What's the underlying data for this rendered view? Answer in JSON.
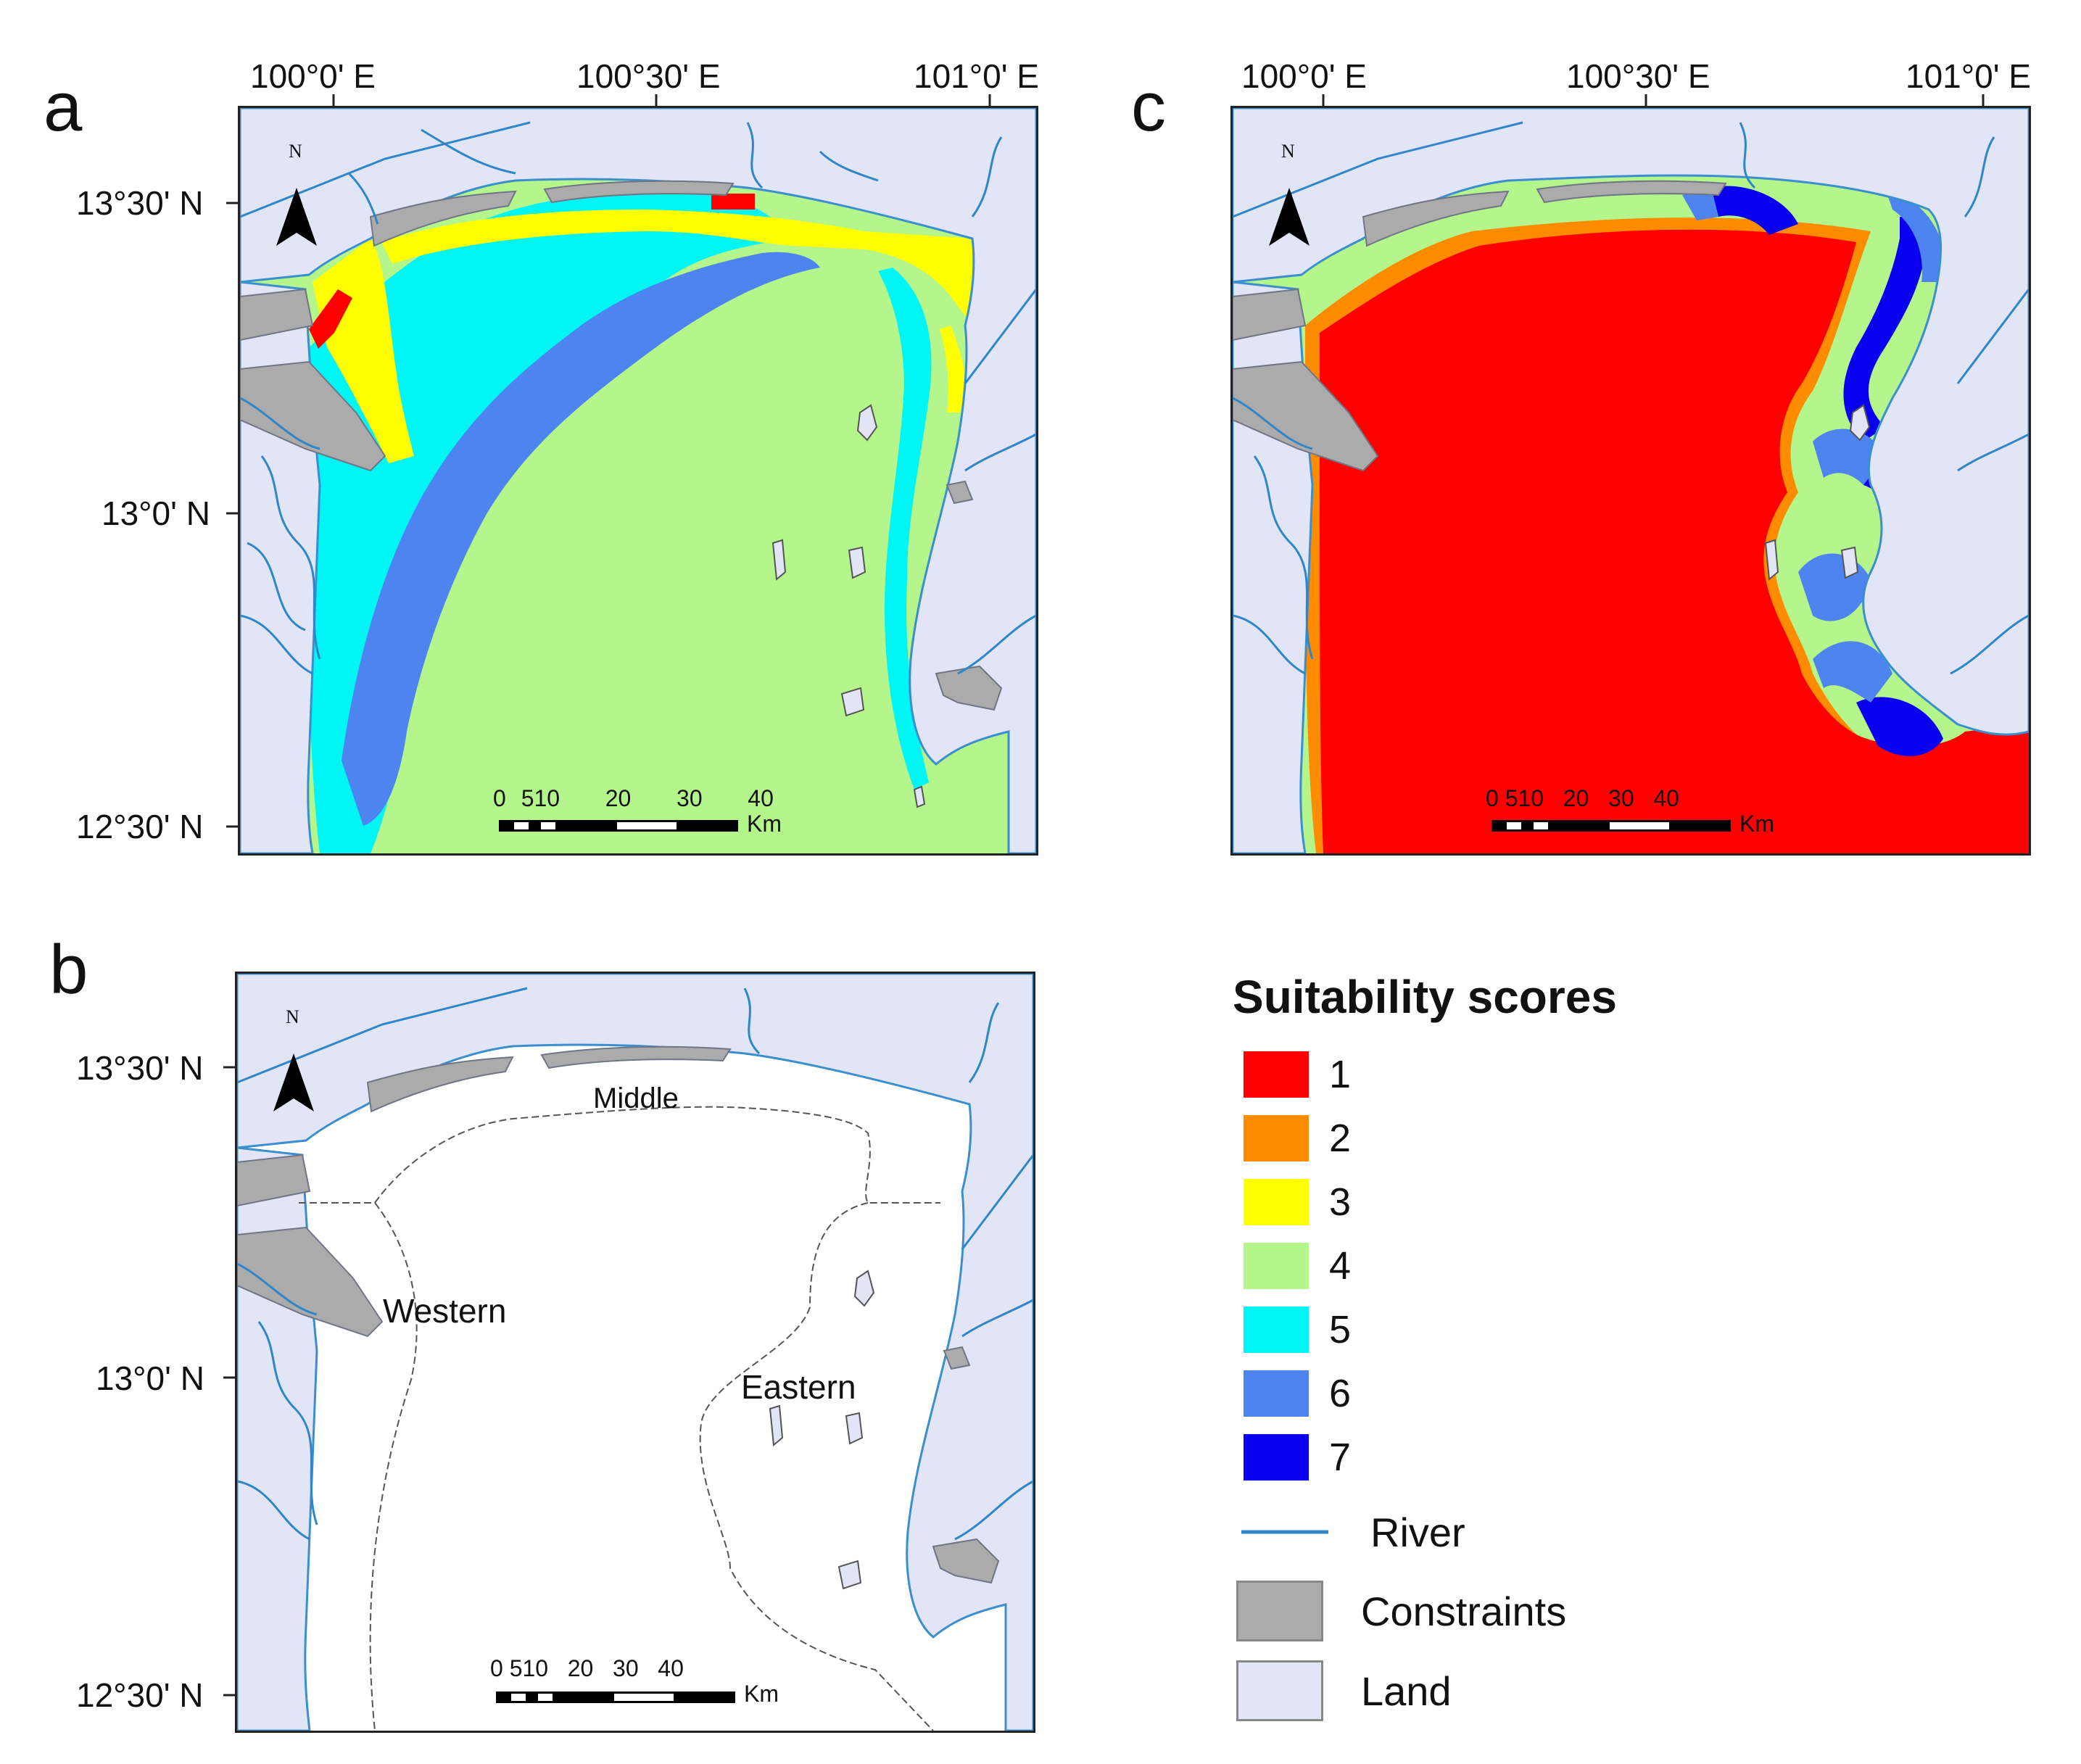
{
  "panels": {
    "a": {
      "letter": "a"
    },
    "b": {
      "letter": "b",
      "regions": {
        "middle": "Middle",
        "western": "Western",
        "eastern": "Eastern"
      }
    },
    "c": {
      "letter": "c"
    }
  },
  "axes": {
    "lon_ticks": [
      "100°0' E",
      "100°30' E",
      "101°0' E"
    ],
    "lat_ticks": [
      "13°30' N",
      "13°0' N",
      "12°30' N"
    ]
  },
  "north_label": "N",
  "scalebar": {
    "labels": [
      "0",
      "5",
      "10",
      "20",
      "30",
      "40"
    ],
    "unit": "Km"
  },
  "legend": {
    "title": "Suitability scores",
    "scores": [
      {
        "label": "1",
        "color": "#ff0000"
      },
      {
        "label": "2",
        "color": "#ff8c00"
      },
      {
        "label": "3",
        "color": "#ffff00"
      },
      {
        "label": "4",
        "color": "#b4f58c"
      },
      {
        "label": "5",
        "color": "#00f5f5"
      },
      {
        "label": "6",
        "color": "#4d84f0"
      },
      {
        "label": "7",
        "color": "#0a00f0"
      }
    ],
    "river": {
      "label": "River",
      "color": "#2f86c8"
    },
    "constraints": {
      "label": "Constraints",
      "color": "#ababab"
    },
    "land": {
      "label": "Land",
      "color": "#e2e5f6"
    }
  }
}
